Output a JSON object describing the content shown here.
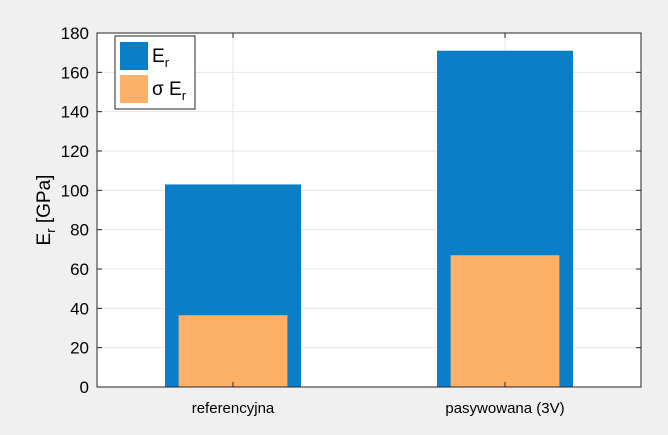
{
  "chart_data": {
    "type": "bar",
    "categories": [
      "referencyjna",
      "pasywowana (3V)"
    ],
    "series": [
      {
        "name": "E",
        "name_subscript": "r",
        "values": [
          103,
          171
        ],
        "color": "#0b7ec8"
      },
      {
        "name": "σ E",
        "name_subscript": "r",
        "values": [
          36.5,
          67
        ],
        "color": "#fdb168"
      }
    ],
    "ylabel": "E",
    "ylabel_subscript": "r",
    "ylabel_unit": " [GPa]",
    "ylim": [
      0,
      180
    ],
    "yticks": [
      "0",
      "20",
      "40",
      "60",
      "80",
      "100",
      "120",
      "140",
      "160",
      "180"
    ],
    "grid": true,
    "legend_position": "top-left",
    "background": "#ffffff",
    "figure_background": "#f0f0f0"
  }
}
